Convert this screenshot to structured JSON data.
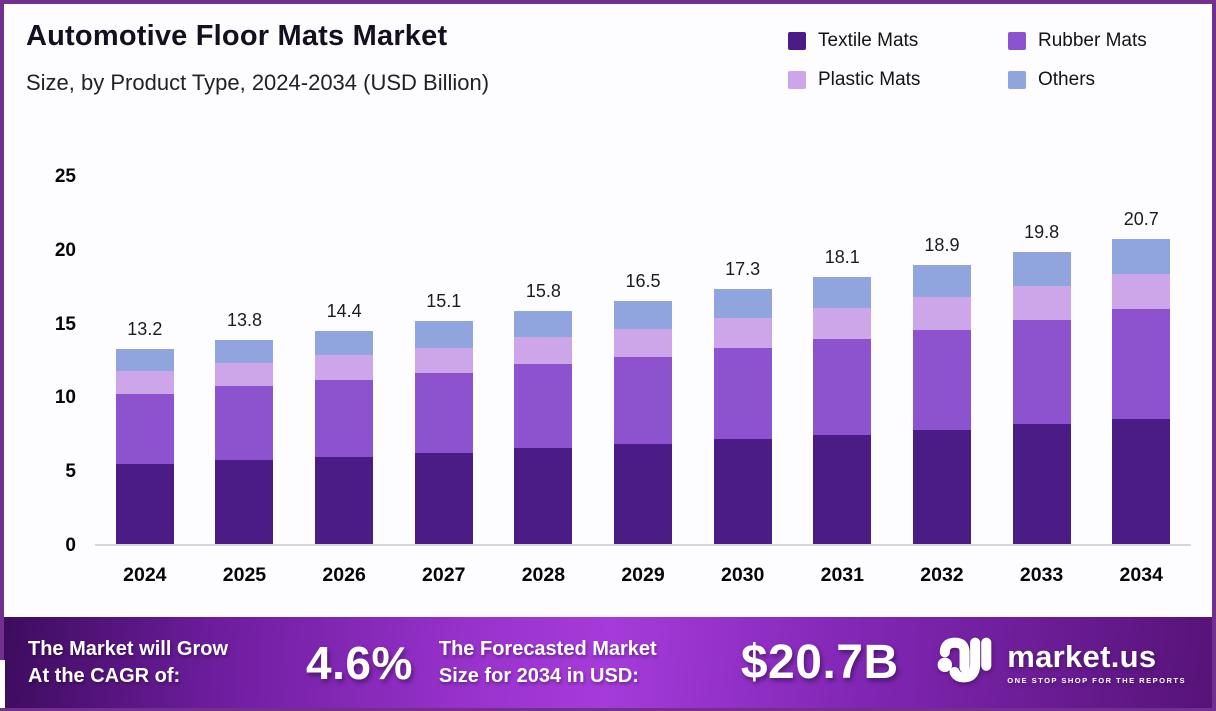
{
  "header": {
    "title": "Automotive Floor Mats Market",
    "subtitle": "Size, by Product Type, 2024-2034 (USD Billion)"
  },
  "legend": {
    "items": [
      {
        "label": "Textile Mats",
        "color": "#4B1C86"
      },
      {
        "label": "Rubber Mats",
        "color": "#8D52CD"
      },
      {
        "label": "Plastic Mats",
        "color": "#CCA6E9"
      },
      {
        "label": "Others",
        "color": "#90A5DD"
      }
    ]
  },
  "chart_data": {
    "type": "bar",
    "stacked": true,
    "title": "Automotive Floor Mats Market Size, by Product Type, 2024-2034 (USD Billion)",
    "unit": "USD Billion",
    "categories": [
      "2024",
      "2025",
      "2026",
      "2027",
      "2028",
      "2029",
      "2030",
      "2031",
      "2032",
      "2033",
      "2034"
    ],
    "series": [
      {
        "name": "Textile Mats",
        "color": "#4B1C86",
        "values": [
          5.4,
          5.7,
          5.9,
          6.2,
          6.5,
          6.8,
          7.1,
          7.4,
          7.7,
          8.1,
          8.5
        ]
      },
      {
        "name": "Rubber Mats",
        "color": "#8D52CD",
        "values": [
          4.8,
          5.0,
          5.2,
          5.4,
          5.7,
          5.9,
          6.2,
          6.5,
          6.8,
          7.1,
          7.4
        ]
      },
      {
        "name": "Plastic Mats",
        "color": "#CCA6E9",
        "values": [
          1.5,
          1.6,
          1.7,
          1.7,
          1.8,
          1.9,
          2.0,
          2.1,
          2.2,
          2.3,
          2.4
        ]
      },
      {
        "name": "Others",
        "color": "#90A5DD",
        "values": [
          1.5,
          1.5,
          1.6,
          1.8,
          1.8,
          1.9,
          2.0,
          2.1,
          2.2,
          2.3,
          2.4
        ]
      }
    ],
    "totals": [
      13.2,
      13.8,
      14.4,
      15.1,
      15.8,
      16.5,
      17.3,
      18.1,
      18.9,
      19.8,
      20.7
    ],
    "y_ticks": [
      0,
      5,
      10,
      15,
      20,
      25
    ],
    "ylim": [
      0,
      25
    ],
    "grid": false,
    "legend_position": "top-right"
  },
  "banner": {
    "grow_line1": "The Market will Grow",
    "grow_line2": "At the CAGR of:",
    "cagr_value": "4.6%",
    "forecast_line1": "The Forecasted Market",
    "forecast_line2": "Size for 2034 in USD:",
    "forecast_value": "$20.7B",
    "brand_name": "market.us",
    "brand_tagline": "ONE STOP SHOP FOR THE REPORTS"
  },
  "colors": {
    "frame_border": "#722F8D",
    "axis_line": "#D9D5DD"
  }
}
